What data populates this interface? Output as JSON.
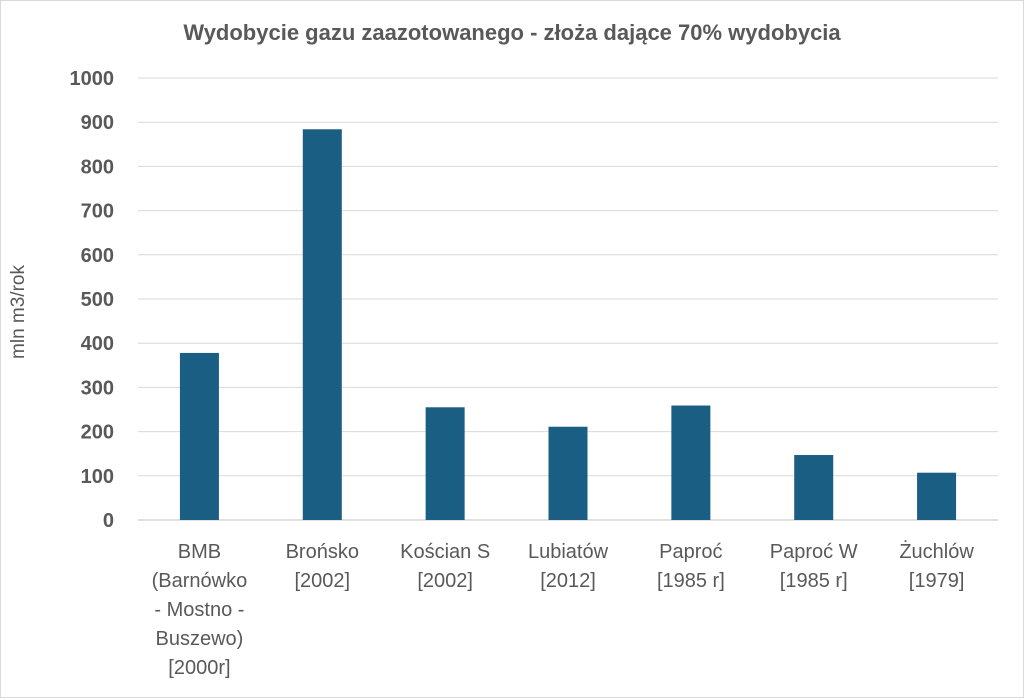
{
  "chart_data": {
    "type": "bar",
    "title": "Wydobycie gazu zaazotowanego - złoża dające 70% wydobycia",
    "xlabel": "",
    "ylabel": "mln m3/rok",
    "ylim": [
      0,
      1000
    ],
    "yticks": [
      0,
      100,
      200,
      300,
      400,
      500,
      600,
      700,
      800,
      900,
      1000
    ],
    "grid": true,
    "legend": "none",
    "categories": [
      [
        "BMB",
        "(Barnówko",
        "- Mostno -",
        "Buszewo)",
        "[2000r]"
      ],
      [
        "Brońsko",
        "[2002]"
      ],
      [
        "Kościan S",
        "[2002]"
      ],
      [
        "Lubiatów",
        "[2012]"
      ],
      [
        "Paproć",
        "[1985 r]"
      ],
      [
        "Paproć W",
        "[1985 r]"
      ],
      [
        "Żuchlów",
        "[1979]"
      ]
    ],
    "values": [
      378,
      884,
      255,
      211,
      259,
      147,
      107
    ],
    "bar_color": "#1a5e83",
    "grid_color": "#d9d9d9"
  }
}
